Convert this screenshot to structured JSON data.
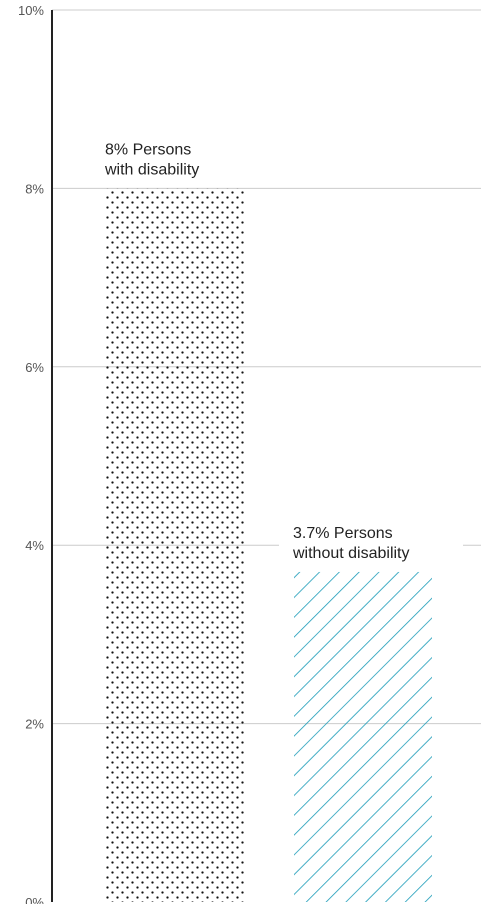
{
  "chart_data": {
    "type": "bar",
    "title": "",
    "xlabel": "",
    "ylabel": "",
    "ylim": [
      0,
      10
    ],
    "y_ticks": [
      {
        "value": 0,
        "label": "0%"
      },
      {
        "value": 2,
        "label": "2%"
      },
      {
        "value": 4,
        "label": "4%"
      },
      {
        "value": 6,
        "label": "6%"
      },
      {
        "value": 8,
        "label": "8%"
      },
      {
        "value": 10,
        "label": "10%"
      }
    ],
    "grid": true,
    "legend": "none",
    "bars": [
      {
        "value": 8,
        "label_lines": [
          "8% Persons",
          "with disability"
        ],
        "pattern": "dots",
        "color": "#111111"
      },
      {
        "value": 3.7,
        "label_lines": [
          "3.7% Persons",
          "without disability"
        ],
        "pattern": "diagonal-lines",
        "color": "#1a9bb8"
      }
    ],
    "colors": {
      "gridline": "#cccccc",
      "axis": "#222222"
    }
  }
}
